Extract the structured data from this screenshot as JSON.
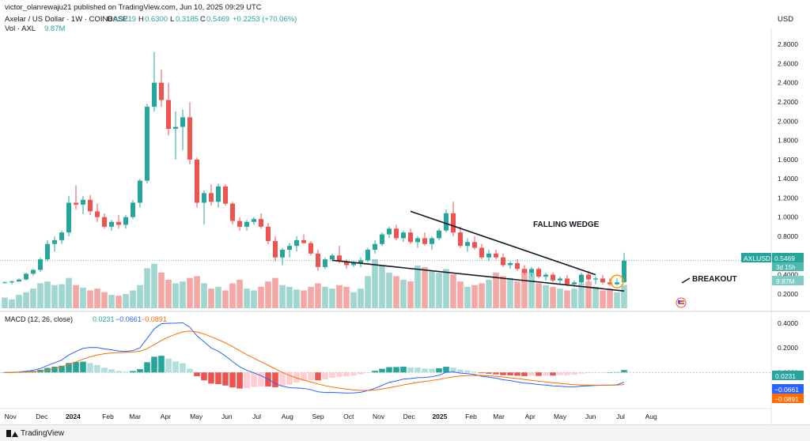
{
  "header": {
    "publisher": "victor_olanrewaju21 published on TradingView.com, Jun 10, 2025 09:29 UTC",
    "symbol": "Axelar / US Dollar · 1W · COINBASE",
    "o_label": "O",
    "o_value": "0.3219",
    "h_label": "H",
    "h_value": "0.6300",
    "l_label": "L",
    "l_value": "0.3185",
    "c_label": "C",
    "c_value": "0.5469",
    "change": "+0.2253 (+70.06%)",
    "vol_label": "Vol · AXL",
    "vol_value": "9.87M",
    "currency": "USD"
  },
  "annotations": {
    "falling_wedge": "FALLING WEDGE",
    "breakout": "BREAKOUT"
  },
  "price_labels": {
    "symbol_tag": "AXLUSD",
    "price_tag": "0.5469",
    "countdown": "3d 15h",
    "volume_tag": "9.87M"
  },
  "macd": {
    "label": "MACD (12, 26, close)",
    "hist_value": "0.0231",
    "macd_value": "−0.0661",
    "signal_value": "−0.0891",
    "hist_tag": "0.0231",
    "macd_tag": "−0.0661",
    "signal_tag": "−0.0891"
  },
  "footer": {
    "brand": "TradingView"
  },
  "colors": {
    "up": "#26a69a",
    "down": "#ef5350",
    "vol_up": "#9fd6d0",
    "vol_down": "#f4a7a5",
    "macd_line": "#2962ff",
    "signal_line": "#ff6d00",
    "hist_up_strong": "#26a69a",
    "hist_up_weak": "#b2dfdb",
    "hist_down_strong": "#ef5350",
    "hist_down_weak": "#ffcdd2",
    "trendline": "#131722",
    "breakout_circle": "#ff9800"
  },
  "chart_data": {
    "type": "candlestick",
    "interval": "1W",
    "price_ylim": [
      0.1,
      2.9
    ],
    "price_ticks": [
      "2.8000",
      "2.6000",
      "2.4000",
      "2.2000",
      "2.0000",
      "1.8000",
      "1.6000",
      "1.4000",
      "1.2000",
      "1.0000",
      "0.8000",
      "0.6000",
      "0.4000",
      "0.2000"
    ],
    "macd_ticks": [
      "0.4000",
      "0.2000",
      "0.0000",
      "−0.2000"
    ],
    "macd_ylim": [
      -0.28,
      0.45
    ],
    "x_ticks": [
      "Nov",
      "Dec",
      "2024",
      "Feb",
      "Mar",
      "Apr",
      "May",
      "Jun",
      "Jul",
      "Aug",
      "Sep",
      "Oct",
      "Nov",
      "Dec",
      "2025",
      "Feb",
      "Mar",
      "Apr",
      "May",
      "Jun",
      "Jul",
      "Aug"
    ],
    "x_tick_weeks": [
      0.8,
      5.2,
      9.6,
      14.5,
      18.3,
      22.6,
      26.9,
      31.2,
      35.4,
      39.7,
      44,
      48.3,
      52.5,
      56.8,
      61.1,
      65.5,
      69.4,
      73.8,
      78,
      82.3,
      86.5,
      90.8
    ],
    "candles": [
      {
        "o": 0.32,
        "h": 0.33,
        "l": 0.31,
        "c": 0.32,
        "v": 12
      },
      {
        "o": 0.32,
        "h": 0.34,
        "l": 0.3,
        "c": 0.33,
        "v": 10
      },
      {
        "o": 0.33,
        "h": 0.36,
        "l": 0.32,
        "c": 0.35,
        "v": 15
      },
      {
        "o": 0.35,
        "h": 0.42,
        "l": 0.34,
        "c": 0.41,
        "v": 18
      },
      {
        "o": 0.41,
        "h": 0.46,
        "l": 0.39,
        "c": 0.45,
        "v": 22
      },
      {
        "o": 0.45,
        "h": 0.58,
        "l": 0.43,
        "c": 0.56,
        "v": 28
      },
      {
        "o": 0.56,
        "h": 0.76,
        "l": 0.54,
        "c": 0.72,
        "v": 30
      },
      {
        "o": 0.72,
        "h": 0.8,
        "l": 0.64,
        "c": 0.76,
        "v": 26
      },
      {
        "o": 0.76,
        "h": 0.86,
        "l": 0.72,
        "c": 0.84,
        "v": 27
      },
      {
        "o": 0.84,
        "h": 1.22,
        "l": 0.8,
        "c": 1.15,
        "v": 34
      },
      {
        "o": 1.15,
        "h": 1.33,
        "l": 1.08,
        "c": 1.13,
        "v": 26
      },
      {
        "o": 1.13,
        "h": 1.22,
        "l": 1.03,
        "c": 1.18,
        "v": 23
      },
      {
        "o": 1.18,
        "h": 1.23,
        "l": 1.02,
        "c": 1.06,
        "v": 20
      },
      {
        "o": 1.06,
        "h": 1.14,
        "l": 0.95,
        "c": 1.0,
        "v": 22
      },
      {
        "o": 1.0,
        "h": 1.04,
        "l": 0.88,
        "c": 0.9,
        "v": 18
      },
      {
        "o": 0.9,
        "h": 0.97,
        "l": 0.86,
        "c": 0.95,
        "v": 15
      },
      {
        "o": 0.95,
        "h": 1.02,
        "l": 0.88,
        "c": 0.92,
        "v": 14
      },
      {
        "o": 0.92,
        "h": 1.02,
        "l": 0.88,
        "c": 1.0,
        "v": 16
      },
      {
        "o": 1.0,
        "h": 1.18,
        "l": 0.98,
        "c": 1.15,
        "v": 20
      },
      {
        "o": 1.15,
        "h": 1.4,
        "l": 1.1,
        "c": 1.38,
        "v": 26
      },
      {
        "o": 1.38,
        "h": 2.18,
        "l": 1.35,
        "c": 2.15,
        "v": 45
      },
      {
        "o": 2.15,
        "h": 2.72,
        "l": 2.1,
        "c": 2.4,
        "v": 50
      },
      {
        "o": 2.4,
        "h": 2.54,
        "l": 2.15,
        "c": 2.22,
        "v": 40
      },
      {
        "o": 2.22,
        "h": 2.4,
        "l": 1.85,
        "c": 1.92,
        "v": 32
      },
      {
        "o": 1.92,
        "h": 2.1,
        "l": 1.6,
        "c": 1.94,
        "v": 28
      },
      {
        "o": 1.94,
        "h": 2.12,
        "l": 1.7,
        "c": 2.04,
        "v": 30
      },
      {
        "o": 2.04,
        "h": 2.2,
        "l": 1.55,
        "c": 1.6,
        "v": 34
      },
      {
        "o": 1.6,
        "h": 1.62,
        "l": 1.1,
        "c": 1.15,
        "v": 36
      },
      {
        "o": 1.15,
        "h": 1.28,
        "l": 0.92,
        "c": 1.25,
        "v": 28
      },
      {
        "o": 1.25,
        "h": 1.34,
        "l": 1.12,
        "c": 1.16,
        "v": 22
      },
      {
        "o": 1.16,
        "h": 1.35,
        "l": 1.1,
        "c": 1.32,
        "v": 24
      },
      {
        "o": 1.32,
        "h": 1.34,
        "l": 1.12,
        "c": 1.14,
        "v": 20
      },
      {
        "o": 1.14,
        "h": 1.16,
        "l": 0.92,
        "c": 0.96,
        "v": 28
      },
      {
        "o": 0.96,
        "h": 1.0,
        "l": 0.86,
        "c": 0.9,
        "v": 32
      },
      {
        "o": 0.9,
        "h": 0.97,
        "l": 0.86,
        "c": 0.95,
        "v": 22
      },
      {
        "o": 0.95,
        "h": 1.0,
        "l": 0.92,
        "c": 0.98,
        "v": 20
      },
      {
        "o": 0.98,
        "h": 1.04,
        "l": 0.88,
        "c": 0.9,
        "v": 24
      },
      {
        "o": 0.9,
        "h": 0.94,
        "l": 0.72,
        "c": 0.75,
        "v": 30
      },
      {
        "o": 0.75,
        "h": 0.8,
        "l": 0.54,
        "c": 0.58,
        "v": 34
      },
      {
        "o": 0.58,
        "h": 0.68,
        "l": 0.5,
        "c": 0.66,
        "v": 26
      },
      {
        "o": 0.66,
        "h": 0.73,
        "l": 0.58,
        "c": 0.7,
        "v": 24
      },
      {
        "o": 0.7,
        "h": 0.8,
        "l": 0.64,
        "c": 0.76,
        "v": 21
      },
      {
        "o": 0.76,
        "h": 0.82,
        "l": 0.72,
        "c": 0.73,
        "v": 20
      },
      {
        "o": 0.73,
        "h": 0.75,
        "l": 0.6,
        "c": 0.62,
        "v": 24
      },
      {
        "o": 0.62,
        "h": 0.66,
        "l": 0.44,
        "c": 0.48,
        "v": 28
      },
      {
        "o": 0.48,
        "h": 0.58,
        "l": 0.46,
        "c": 0.56,
        "v": 24
      },
      {
        "o": 0.56,
        "h": 0.62,
        "l": 0.54,
        "c": 0.6,
        "v": 22
      },
      {
        "o": 0.6,
        "h": 0.7,
        "l": 0.52,
        "c": 0.54,
        "v": 26
      },
      {
        "o": 0.54,
        "h": 0.56,
        "l": 0.46,
        "c": 0.5,
        "v": 24
      },
      {
        "o": 0.5,
        "h": 0.54,
        "l": 0.48,
        "c": 0.52,
        "v": 18
      },
      {
        "o": 0.52,
        "h": 0.58,
        "l": 0.48,
        "c": 0.55,
        "v": 22
      },
      {
        "o": 0.55,
        "h": 0.68,
        "l": 0.53,
        "c": 0.66,
        "v": 36
      },
      {
        "o": 0.66,
        "h": 0.76,
        "l": 0.62,
        "c": 0.72,
        "v": 55
      },
      {
        "o": 0.72,
        "h": 0.84,
        "l": 0.7,
        "c": 0.82,
        "v": 48
      },
      {
        "o": 0.82,
        "h": 0.9,
        "l": 0.78,
        "c": 0.88,
        "v": 40
      },
      {
        "o": 0.88,
        "h": 0.92,
        "l": 0.76,
        "c": 0.78,
        "v": 36
      },
      {
        "o": 0.78,
        "h": 0.86,
        "l": 0.74,
        "c": 0.84,
        "v": 32
      },
      {
        "o": 0.84,
        "h": 0.88,
        "l": 0.72,
        "c": 0.74,
        "v": 30
      },
      {
        "o": 0.74,
        "h": 0.8,
        "l": 0.68,
        "c": 0.78,
        "v": 48
      },
      {
        "o": 0.78,
        "h": 0.84,
        "l": 0.7,
        "c": 0.72,
        "v": 46
      },
      {
        "o": 0.72,
        "h": 0.8,
        "l": 0.66,
        "c": 0.78,
        "v": 42
      },
      {
        "o": 0.78,
        "h": 0.88,
        "l": 0.76,
        "c": 0.86,
        "v": 40
      },
      {
        "o": 0.86,
        "h": 1.08,
        "l": 0.84,
        "c": 1.04,
        "v": 44
      },
      {
        "o": 1.04,
        "h": 1.16,
        "l": 0.8,
        "c": 0.84,
        "v": 38
      },
      {
        "o": 0.84,
        "h": 0.9,
        "l": 0.68,
        "c": 0.7,
        "v": 30
      },
      {
        "o": 0.7,
        "h": 0.78,
        "l": 0.64,
        "c": 0.74,
        "v": 24
      },
      {
        "o": 0.74,
        "h": 0.8,
        "l": 0.66,
        "c": 0.68,
        "v": 26
      },
      {
        "o": 0.68,
        "h": 0.72,
        "l": 0.56,
        "c": 0.58,
        "v": 28
      },
      {
        "o": 0.58,
        "h": 0.66,
        "l": 0.54,
        "c": 0.62,
        "v": 32
      },
      {
        "o": 0.62,
        "h": 0.66,
        "l": 0.56,
        "c": 0.58,
        "v": 40
      },
      {
        "o": 0.58,
        "h": 0.62,
        "l": 0.48,
        "c": 0.5,
        "v": 36
      },
      {
        "o": 0.5,
        "h": 0.54,
        "l": 0.46,
        "c": 0.52,
        "v": 34
      },
      {
        "o": 0.52,
        "h": 0.56,
        "l": 0.44,
        "c": 0.46,
        "v": 30
      },
      {
        "o": 0.46,
        "h": 0.5,
        "l": 0.4,
        "c": 0.42,
        "v": 44
      },
      {
        "o": 0.42,
        "h": 0.48,
        "l": 0.38,
        "c": 0.46,
        "v": 40
      },
      {
        "o": 0.46,
        "h": 0.48,
        "l": 0.36,
        "c": 0.38,
        "v": 28
      },
      {
        "o": 0.38,
        "h": 0.42,
        "l": 0.34,
        "c": 0.4,
        "v": 26
      },
      {
        "o": 0.4,
        "h": 0.42,
        "l": 0.32,
        "c": 0.34,
        "v": 24
      },
      {
        "o": 0.34,
        "h": 0.38,
        "l": 0.3,
        "c": 0.36,
        "v": 22
      },
      {
        "o": 0.36,
        "h": 0.4,
        "l": 0.28,
        "c": 0.3,
        "v": 20
      },
      {
        "o": 0.3,
        "h": 0.34,
        "l": 0.27,
        "c": 0.32,
        "v": 22
      },
      {
        "o": 0.32,
        "h": 0.42,
        "l": 0.3,
        "c": 0.4,
        "v": 28
      },
      {
        "o": 0.4,
        "h": 0.44,
        "l": 0.33,
        "c": 0.35,
        "v": 30
      },
      {
        "o": 0.35,
        "h": 0.38,
        "l": 0.3,
        "c": 0.36,
        "v": 24
      },
      {
        "o": 0.36,
        "h": 0.4,
        "l": 0.3,
        "c": 0.32,
        "v": 20
      },
      {
        "o": 0.32,
        "h": 0.36,
        "l": 0.28,
        "c": 0.3,
        "v": 22
      },
      {
        "o": 0.3,
        "h": 0.36,
        "l": 0.29,
        "c": 0.32,
        "v": 18
      },
      {
        "o": 0.3219,
        "h": 0.63,
        "l": 0.3185,
        "c": 0.5469,
        "v": 26
      }
    ],
    "wedge_upper": {
      "from": {
        "week": 57,
        "price": 1.06
      },
      "to": {
        "week": 83,
        "price": 0.4
      }
    },
    "wedge_lower": {
      "from": {
        "week": 46,
        "price": 0.55
      },
      "to": {
        "week": 87,
        "price": 0.23
      }
    },
    "current_price": 0.5469
  }
}
